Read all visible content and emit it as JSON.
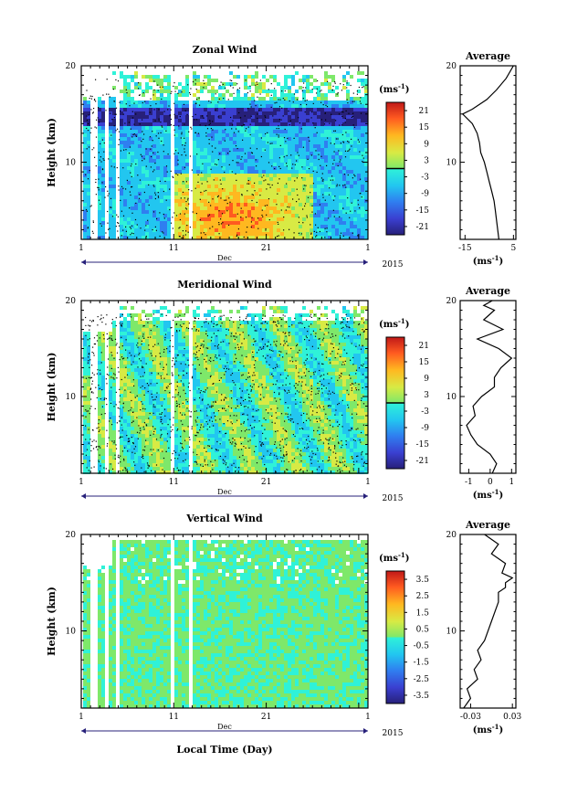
{
  "figure": {
    "xlabel": "Local Time (Day)",
    "month_label": "Dec",
    "year_label": "2015",
    "ylabel": "Height (km)",
    "avg_title": "Average"
  },
  "panels": [
    {
      "id": "zonal",
      "title": "Zonal Wind",
      "colorbar_unit": "(ms",
      "colorbar_ticks": [
        "21",
        "15",
        "9",
        "3",
        "-3",
        "-9",
        "-15",
        "-21"
      ],
      "avg_xunit": "(ms",
      "avg_xticks": [
        "-15",
        "5"
      ]
    },
    {
      "id": "meridional",
      "title": "Meridional Wind",
      "colorbar_unit": "(ms",
      "colorbar_ticks": [
        "21",
        "15",
        "9",
        "3",
        "-3",
        "-9",
        "-15",
        "-21"
      ],
      "avg_xunit": "(ms",
      "avg_xticks": [
        "-1",
        "0",
        "1"
      ]
    },
    {
      "id": "vertical",
      "title": "Vertical Wind",
      "colorbar_unit": "(ms",
      "colorbar_ticks": [
        "3.5",
        "2.5",
        "1.5",
        "0.5",
        "-0.5",
        "-1.5",
        "-2.5",
        "-3.5"
      ],
      "avg_xunit": "(ms",
      "avg_xticks": [
        "-0.03",
        "0.03"
      ]
    }
  ],
  "chart_data": [
    {
      "type": "heatmap",
      "title": "Zonal Wind",
      "xlabel": "Dec",
      "ylabel": "Height (km)",
      "xlim": [
        1,
        32
      ],
      "ylim": [
        2,
        20
      ],
      "x_ticks": [
        "1",
        "11",
        "21",
        "1"
      ],
      "y_ticks": [
        "10",
        "20"
      ],
      "colorbar": {
        "unit": "ms^-1",
        "range": [
          -24,
          24
        ],
        "zero_contour": true
      }
    },
    {
      "type": "line",
      "title": "Average",
      "xlabel": "(ms^-1)",
      "ylabel": "Height (km)",
      "xlim": [
        -17,
        6
      ],
      "ylim": [
        2,
        20
      ],
      "series": [
        {
          "x": [
            -1,
            -1.5,
            -2,
            -2.5,
            -3,
            -4,
            -5,
            -6,
            -7,
            -8.5,
            -9,
            -10,
            -12,
            -16,
            -12,
            -6,
            -2,
            2,
            5
          ],
          "y": [
            2,
            3,
            4,
            5,
            6,
            7,
            8,
            9,
            10,
            11,
            12,
            13,
            14,
            15,
            15.5,
            16.5,
            17.5,
            18.7,
            20
          ]
        }
      ]
    },
    {
      "type": "heatmap",
      "title": "Meridional Wind",
      "xlabel": "Dec",
      "ylabel": "Height (km)",
      "xlim": [
        1,
        32
      ],
      "ylim": [
        2,
        20
      ],
      "x_ticks": [
        "1",
        "11",
        "21",
        "1"
      ],
      "y_ticks": [
        "10",
        "20"
      ],
      "colorbar": {
        "unit": "ms^-1",
        "range": [
          -24,
          24
        ],
        "zero_contour": true
      }
    },
    {
      "type": "line",
      "title": "Average",
      "xlabel": "(ms^-1)",
      "ylabel": "Height (km)",
      "xlim": [
        -1.4,
        1.2
      ],
      "ylim": [
        2,
        20
      ],
      "series": [
        {
          "x": [
            0.1,
            0.3,
            0,
            -0.6,
            -0.9,
            -1.1,
            -0.7,
            -0.8,
            -0.4,
            0.2,
            0.2,
            0.5,
            1.0,
            0.4,
            -0.6,
            0.6,
            -0.3,
            0.2,
            -0.3,
            0.1
          ],
          "y": [
            2,
            3,
            4,
            5,
            6,
            7,
            8,
            9,
            10,
            11,
            12,
            13,
            14,
            15,
            16,
            17,
            18,
            19,
            19.5,
            20
          ]
        }
      ]
    },
    {
      "type": "heatmap",
      "title": "Vertical Wind",
      "xlabel": "Dec",
      "ylabel": "Height (km)",
      "xlim": [
        1,
        32
      ],
      "ylim": [
        2,
        20
      ],
      "x_ticks": [
        "1",
        "11",
        "21",
        "1"
      ],
      "y_ticks": [
        "10",
        "20"
      ],
      "colorbar": {
        "unit": "ms^-1",
        "range": [
          -4,
          4
        ],
        "zero_contour": false
      }
    },
    {
      "type": "line",
      "title": "Average",
      "xlabel": "(ms^-1)",
      "ylabel": "Height (km)",
      "xlim": [
        -0.045,
        0.035
      ],
      "ylim": [
        2,
        20
      ],
      "series": [
        {
          "x": [
            -0.04,
            -0.03,
            -0.035,
            -0.02,
            -0.025,
            -0.015,
            -0.02,
            -0.01,
            -0.005,
            0.0,
            0.005,
            0.01,
            0.01,
            0.02,
            0.02,
            0.03,
            0.015,
            0.02,
            0.0,
            0.01,
            -0.01
          ],
          "y": [
            2,
            3,
            4,
            5,
            6,
            7,
            8,
            9,
            10,
            11,
            12,
            13,
            14,
            14.5,
            15,
            15.5,
            16,
            17,
            18,
            19,
            20
          ]
        }
      ]
    }
  ]
}
